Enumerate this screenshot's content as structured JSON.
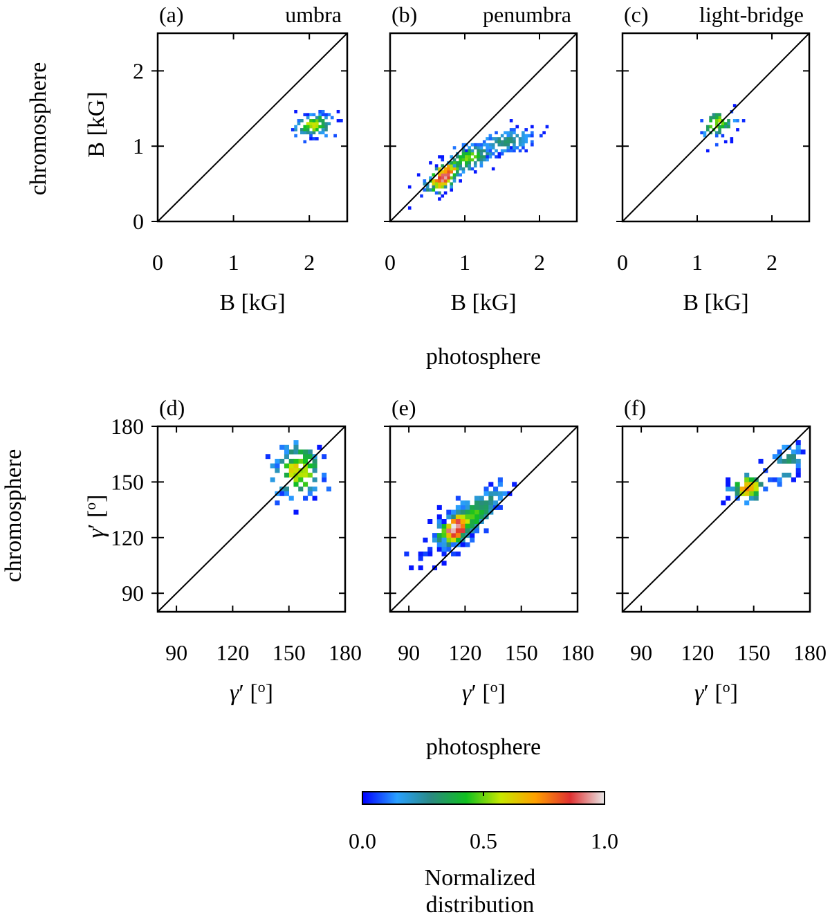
{
  "chart_data": {
    "colorbar": {
      "label_line1": "Normalized",
      "label_line2": "distribution",
      "ticks": [
        "0.0",
        "0.5",
        "1.0"
      ],
      "tick_values": [
        0.0,
        0.5,
        1.0
      ],
      "colormap": [
        "#0000ff",
        "#2aa0ff",
        "#2a8a80",
        "#10c020",
        "#c8e800",
        "#ffa000",
        "#e03030",
        "#e8e8e8"
      ]
    },
    "row_labels": {
      "chromosphere_top": "chromosphere",
      "chromosphere_bottom": "chromosphere",
      "photosphere_top": "photosphere",
      "photosphere_bottom": "photosphere"
    },
    "panels": [
      {
        "id": "a",
        "letter": "(a)",
        "title": "umbra",
        "type": "heatmap",
        "xlabel": "B [kG]",
        "ylabel": "B [kG]",
        "xlim": [
          0,
          2.5
        ],
        "ylim": [
          0,
          2.5
        ],
        "xticks": [
          0,
          1,
          2
        ],
        "yticks": [
          0,
          1,
          2
        ],
        "xtick_labels": [
          "0",
          "1",
          "2"
        ],
        "ytick_labels": [
          "0",
          "1",
          "2"
        ],
        "bin": 0.04,
        "clusters": [
          {
            "cx": 2.05,
            "cy": 1.28,
            "sx": 0.14,
            "sy": 0.08,
            "rho": 0.2,
            "n": 110,
            "peak": 0.55
          }
        ]
      },
      {
        "id": "b",
        "letter": "(b)",
        "title": "penumbra",
        "type": "heatmap",
        "xlabel": "B [kG]",
        "ylabel": "",
        "xlim": [
          0,
          2.5
        ],
        "ylim": [
          0,
          2.5
        ],
        "xticks": [
          0,
          1,
          2
        ],
        "yticks": [
          0,
          1,
          2
        ],
        "xtick_labels": [
          "0",
          "1",
          "2"
        ],
        "ytick_labels": [
          "",
          "",
          ""
        ],
        "bin": 0.04,
        "clusters": [
          {
            "cx": 0.72,
            "cy": 0.6,
            "sx": 0.13,
            "sy": 0.13,
            "rho": 0.6,
            "n": 150,
            "peak": 0.9
          },
          {
            "cx": 1.05,
            "cy": 0.84,
            "sx": 0.18,
            "sy": 0.1,
            "rho": 0.5,
            "n": 130,
            "peak": 0.5
          },
          {
            "cx": 1.55,
            "cy": 1.06,
            "sx": 0.22,
            "sy": 0.09,
            "rho": 0.4,
            "n": 130,
            "peak": 0.3
          }
        ]
      },
      {
        "id": "c",
        "letter": "(c)",
        "title": "light-bridge",
        "type": "heatmap",
        "xlabel": "B [kG]",
        "ylabel": "",
        "xlim": [
          0,
          2.5
        ],
        "ylim": [
          0,
          2.5
        ],
        "xticks": [
          0,
          1,
          2
        ],
        "yticks": [
          0,
          1,
          2
        ],
        "xtick_labels": [
          "0",
          "1",
          "2"
        ],
        "ytick_labels": [
          "",
          "",
          ""
        ],
        "bin": 0.04,
        "clusters": [
          {
            "cx": 1.27,
            "cy": 1.3,
            "sx": 0.13,
            "sy": 0.1,
            "rho": 0.3,
            "n": 55,
            "peak": 0.55
          }
        ]
      },
      {
        "id": "d",
        "letter": "(d)",
        "title": "",
        "type": "heatmap",
        "xlabel": "γ′ [o]",
        "ylabel": "γ′ [o]",
        "xlim": [
          80,
          180
        ],
        "ylim": [
          80,
          180
        ],
        "xticks": [
          90,
          120,
          150,
          180
        ],
        "yticks": [
          90,
          120,
          150,
          180
        ],
        "xtick_labels": [
          "90",
          "120",
          "150",
          "180"
        ],
        "ytick_labels": [
          "90",
          "120",
          "150",
          "180"
        ],
        "bin": 2.5,
        "clusters": [
          {
            "cx": 155,
            "cy": 156,
            "sx": 7.5,
            "sy": 8,
            "rho": 0.1,
            "n": 95,
            "peak": 0.6
          }
        ]
      },
      {
        "id": "e",
        "letter": "(e)",
        "title": "",
        "type": "heatmap",
        "xlabel": "γ′ [o]",
        "ylabel": "",
        "xlim": [
          80,
          180
        ],
        "ylim": [
          80,
          180
        ],
        "xticks": [
          90,
          120,
          150,
          180
        ],
        "yticks": [
          90,
          120,
          150,
          180
        ],
        "xtick_labels": [
          "90",
          "120",
          "150",
          "180"
        ],
        "ytick_labels": [
          "",
          "",
          "",
          ""
        ],
        "bin": 2.5,
        "clusters": [
          {
            "cx": 115,
            "cy": 125,
            "sx": 5,
            "sy": 5,
            "rho": 0.5,
            "n": 120,
            "peak": 0.95
          },
          {
            "cx": 122,
            "cy": 130,
            "sx": 10,
            "sy": 9,
            "rho": 0.8,
            "n": 240,
            "peak": 0.45
          }
        ]
      },
      {
        "id": "f",
        "letter": "(f)",
        "title": "",
        "type": "heatmap",
        "xlabel": "γ′ [o]",
        "ylabel": "",
        "xlim": [
          80,
          180
        ],
        "ylim": [
          80,
          180
        ],
        "xticks": [
          90,
          120,
          150,
          180
        ],
        "yticks": [
          90,
          120,
          150,
          180
        ],
        "xtick_labels": [
          "90",
          "120",
          "150",
          "180"
        ],
        "ytick_labels": [
          "",
          "",
          "",
          ""
        ],
        "bin": 2.5,
        "clusters": [
          {
            "cx": 147,
            "cy": 147,
            "sx": 5,
            "sy": 4,
            "rho": 0.2,
            "n": 55,
            "peak": 0.7
          },
          {
            "cx": 168,
            "cy": 160,
            "sx": 4,
            "sy": 6,
            "rho": 0.3,
            "n": 35,
            "peak": 0.35
          }
        ]
      }
    ]
  }
}
